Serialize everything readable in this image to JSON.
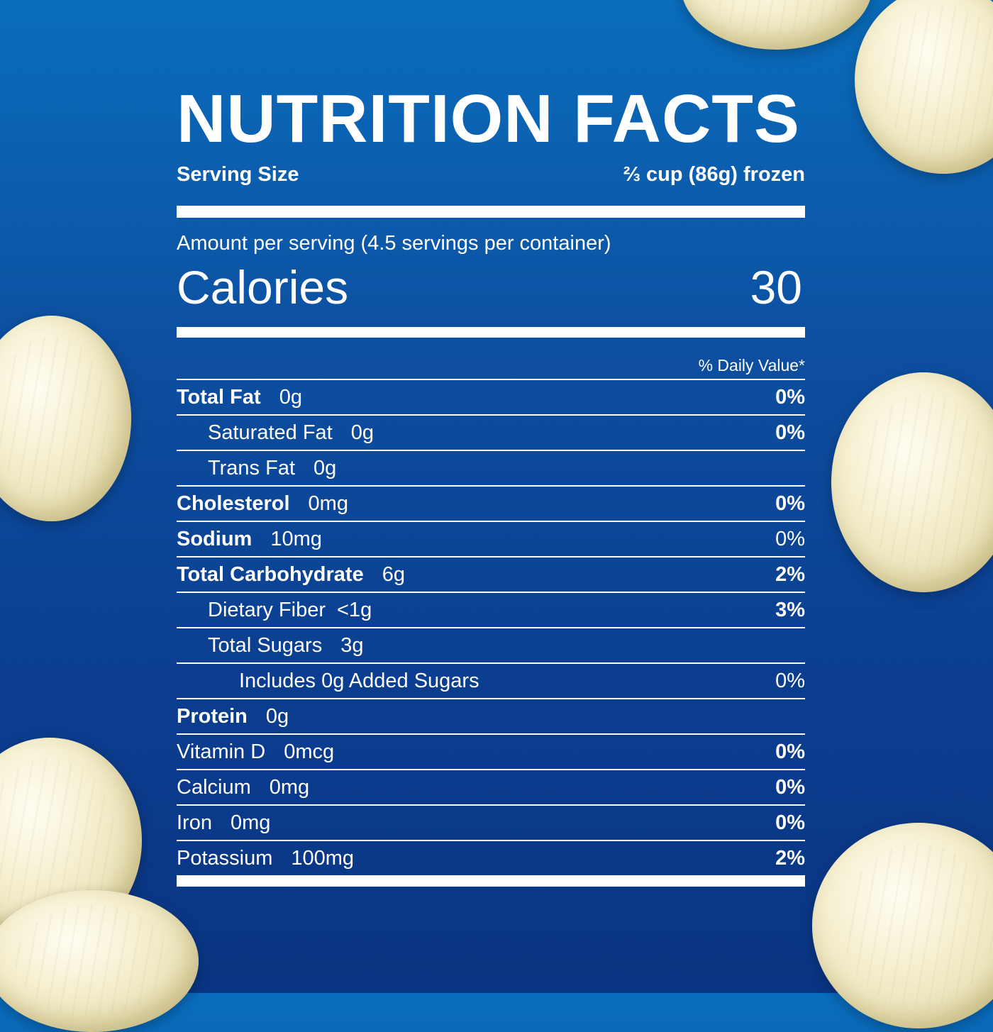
{
  "label": {
    "title": "NUTRITION FACTS",
    "serving_size_label": "Serving Size",
    "serving_size_value": "⅔ cup (86g) frozen",
    "amount_per_serving": "Amount per serving (4.5 servings per container)",
    "calories_label": "Calories",
    "calories_value": "30",
    "daily_value_header": "% Daily Value*",
    "rows": [
      {
        "name": "Total Fat",
        "amount": "0g",
        "dv": "0%"
      },
      {
        "name": "Saturated Fat",
        "amount": "0g",
        "dv": "0%"
      },
      {
        "name": "Trans Fat",
        "amount": "0g",
        "dv": ""
      },
      {
        "name": "Cholesterol",
        "amount": "0mg",
        "dv": "0%"
      },
      {
        "name": "Sodium",
        "amount": "10mg",
        "dv": "0%"
      },
      {
        "name": "Total Carbohydrate",
        "amount": "6g",
        "dv": "2%"
      },
      {
        "name": "Dietary Fiber",
        "amount": "<1g",
        "dv": "3%"
      },
      {
        "name": "Total Sugars",
        "amount": "3g",
        "dv": ""
      },
      {
        "name": "Includes 0g Added Sugars",
        "amount": "",
        "dv": "0%"
      },
      {
        "name": "Protein",
        "amount": "0g",
        "dv": ""
      },
      {
        "name": "Vitamin D",
        "amount": "0mcg",
        "dv": "0%"
      },
      {
        "name": "Calcium",
        "amount": "0mg",
        "dv": "0%"
      },
      {
        "name": "Iron",
        "amount": "0mg",
        "dv": "0%"
      },
      {
        "name": "Potassium",
        "amount": "100mg",
        "dv": "2%"
      }
    ]
  },
  "colors": {
    "background_top": "#0a6dbd",
    "background_bottom": "#0a3583",
    "text": "#ffffff",
    "onion": "#f5efcf"
  },
  "decorations": [
    "pearl-onion-icon"
  ]
}
